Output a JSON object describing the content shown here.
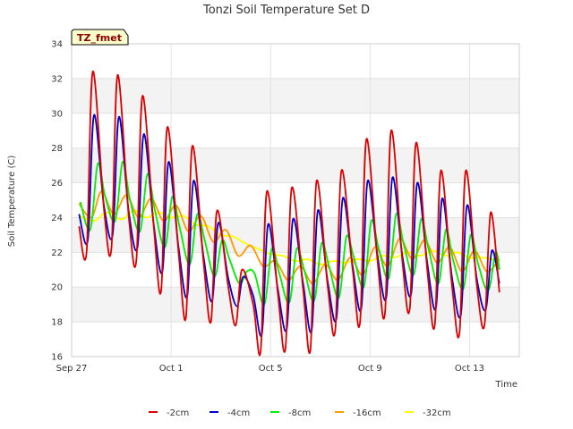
{
  "chart_data": {
    "type": "line",
    "title": "Tonzi Soil Temperature Set D",
    "xlabel": "Time",
    "ylabel": "Soil Temperature (C)",
    "badge": "TZ_fmet",
    "ylim": [
      16,
      34
    ],
    "yticks": [
      16,
      18,
      20,
      22,
      24,
      26,
      28,
      30,
      32,
      34
    ],
    "xlim": [
      0,
      18
    ],
    "xticks": [
      {
        "label": "Sep 27",
        "value": 0
      },
      {
        "label": "Oct 1",
        "value": 4
      },
      {
        "label": "Oct 5",
        "value": 8
      },
      {
        "label": "Oct 9",
        "value": 12
      },
      {
        "label": "Oct 13",
        "value": 16
      }
    ],
    "grid": true,
    "legend_position": "bottom",
    "series": [
      {
        "name": "-2cm",
        "color": "#dd0000",
        "x": [
          0.3,
          0.6,
          0.85,
          1.3,
          1.6,
          1.85,
          2.3,
          2.6,
          2.85,
          3.3,
          3.6,
          3.85,
          4.3,
          4.6,
          4.85,
          5.3,
          5.6,
          5.85,
          6.3,
          6.6,
          6.85,
          7.3,
          7.6,
          7.85,
          8.3,
          8.6,
          8.85,
          9.3,
          9.6,
          9.85,
          10.3,
          10.6,
          10.85,
          11.3,
          11.6,
          11.85,
          12.3,
          12.6,
          12.85,
          13.3,
          13.6,
          13.85,
          14.3,
          14.6,
          14.85,
          15.3,
          15.6,
          15.85,
          16.3,
          16.6,
          16.85,
          17.2
        ],
        "y": [
          23.5,
          22.0,
          32.4,
          24.5,
          22.2,
          32.2,
          24.0,
          21.5,
          31.0,
          23.5,
          19.8,
          29.2,
          22.0,
          18.3,
          28.1,
          21.5,
          18.0,
          24.4,
          20.0,
          17.8,
          21.0,
          19.0,
          16.3,
          25.5,
          19.5,
          16.5,
          25.7,
          20.0,
          16.4,
          26.1,
          20.0,
          17.5,
          26.7,
          21.0,
          18.0,
          28.5,
          21.5,
          18.5,
          29.0,
          21.5,
          18.8,
          28.3,
          21.0,
          17.8,
          26.7,
          20.0,
          17.4,
          26.7,
          20.0,
          17.8,
          24.3,
          19.7
        ]
      },
      {
        "name": "-4cm",
        "color": "#0000cc",
        "x": [
          0.3,
          0.65,
          0.9,
          1.3,
          1.65,
          1.9,
          2.3,
          2.65,
          2.9,
          3.3,
          3.65,
          3.9,
          4.3,
          4.65,
          4.9,
          5.3,
          5.65,
          5.9,
          6.3,
          6.65,
          6.9,
          7.3,
          7.65,
          7.9,
          8.3,
          8.65,
          8.9,
          9.3,
          9.65,
          9.9,
          10.3,
          10.65,
          10.9,
          11.3,
          11.65,
          11.9,
          12.3,
          12.65,
          12.9,
          13.3,
          13.65,
          13.9,
          14.3,
          14.65,
          14.9,
          15.3,
          15.65,
          15.9,
          16.3,
          16.65,
          16.9,
          17.2
        ],
        "y": [
          24.2,
          22.7,
          29.9,
          24.7,
          23.0,
          29.8,
          24.3,
          22.3,
          28.8,
          23.6,
          20.9,
          27.2,
          22.3,
          19.5,
          26.1,
          21.8,
          19.2,
          23.7,
          20.5,
          18.9,
          20.6,
          19.5,
          17.3,
          23.6,
          19.8,
          17.6,
          23.9,
          20.3,
          17.5,
          24.4,
          20.3,
          18.2,
          25.1,
          21.2,
          18.8,
          26.1,
          21.8,
          19.4,
          26.3,
          21.8,
          19.6,
          26.0,
          21.4,
          18.8,
          25.1,
          20.5,
          18.4,
          24.7,
          20.4,
          18.7,
          22.1,
          20.2
        ]
      },
      {
        "name": "-8cm",
        "color": "#00ee00",
        "x": [
          0.35,
          0.75,
          1.05,
          1.35,
          1.75,
          2.05,
          2.35,
          2.75,
          3.05,
          3.35,
          3.75,
          4.05,
          4.35,
          4.75,
          5.05,
          5.35,
          5.75,
          6.05,
          6.35,
          6.75,
          7.05,
          7.35,
          7.75,
          8.05,
          8.35,
          8.75,
          9.05,
          9.35,
          9.75,
          10.05,
          10.35,
          10.75,
          11.05,
          11.35,
          11.75,
          12.05,
          12.35,
          12.75,
          13.05,
          13.35,
          13.75,
          14.05,
          14.35,
          14.75,
          15.05,
          15.35,
          15.75,
          16.05,
          16.35,
          16.75,
          17.05,
          17.2
        ],
        "y": [
          24.9,
          23.3,
          27.1,
          25.2,
          23.8,
          27.2,
          25.0,
          23.2,
          26.5,
          24.4,
          22.3,
          25.2,
          23.4,
          21.3,
          24.2,
          22.7,
          20.6,
          22.7,
          21.6,
          20.2,
          20.9,
          20.8,
          19.0,
          22.2,
          20.8,
          19.1,
          22.2,
          21.0,
          19.2,
          22.5,
          21.2,
          19.4,
          22.9,
          21.7,
          20.0,
          23.8,
          22.2,
          20.5,
          24.2,
          22.5,
          20.7,
          23.9,
          22.2,
          20.2,
          23.3,
          21.5,
          19.9,
          23.0,
          21.3,
          19.8,
          22.0,
          21.0
        ]
      },
      {
        "name": "-16cm",
        "color": "#ff9900",
        "x": [
          0.3,
          0.8,
          1.2,
          1.7,
          2.2,
          2.7,
          3.2,
          3.7,
          4.2,
          4.7,
          5.2,
          5.7,
          6.2,
          6.7,
          7.2,
          7.7,
          8.2,
          8.7,
          9.2,
          9.7,
          10.2,
          10.7,
          11.2,
          11.7,
          12.2,
          12.7,
          13.2,
          13.7,
          14.2,
          14.7,
          15.2,
          15.7,
          16.2,
          16.7,
          17.2
        ],
        "y": [
          24.8,
          24.0,
          25.5,
          24.2,
          25.3,
          24.0,
          25.1,
          23.8,
          24.7,
          23.2,
          24.1,
          22.6,
          23.3,
          21.8,
          22.4,
          21.2,
          21.5,
          20.4,
          21.2,
          20.2,
          21.3,
          20.4,
          21.7,
          20.7,
          22.3,
          21.2,
          22.8,
          21.6,
          22.7,
          21.4,
          22.3,
          20.9,
          22.1,
          20.9,
          21.6
        ]
      },
      {
        "name": "-32cm",
        "color": "#ffff00",
        "x": [
          0.3,
          0.9,
          1.4,
          2.0,
          2.5,
          3.0,
          3.5,
          4.0,
          4.5,
          5.0,
          5.5,
          6.0,
          6.5,
          7.0,
          7.5,
          8.0,
          8.5,
          9.0,
          9.5,
          10.0,
          10.5,
          11.0,
          11.5,
          12.0,
          12.5,
          13.0,
          13.5,
          14.0,
          14.5,
          15.0,
          15.5,
          16.0,
          16.5,
          17.2
        ],
        "y": [
          24.1,
          23.8,
          24.3,
          23.9,
          24.4,
          24.0,
          24.3,
          24.0,
          24.1,
          23.6,
          23.5,
          23.0,
          22.9,
          22.5,
          22.2,
          21.9,
          21.8,
          21.5,
          21.6,
          21.3,
          21.5,
          21.4,
          21.6,
          21.5,
          21.8,
          21.7,
          22.0,
          21.8,
          22.1,
          21.8,
          22.0,
          21.7,
          21.7,
          21.5
        ]
      }
    ]
  }
}
